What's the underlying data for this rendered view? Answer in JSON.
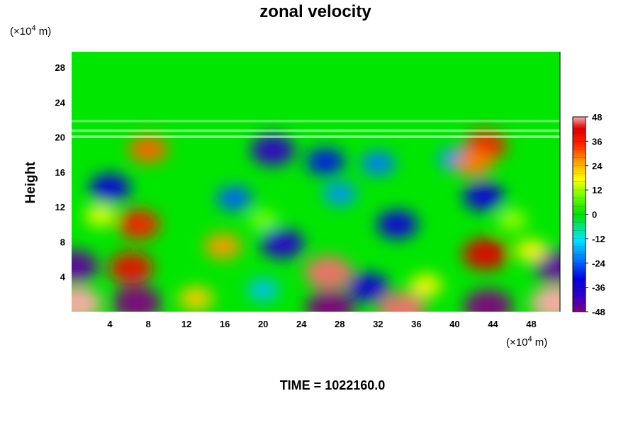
{
  "chart_data": {
    "type": "heatmap",
    "title": "zonal velocity",
    "xlabel": "",
    "ylabel": "Height",
    "x_unit_base": "(×10",
    "x_unit_exp": "4",
    "x_unit_tail": " m)",
    "y_unit_base": "(×10",
    "y_unit_exp": "4",
    "y_unit_tail": " m)",
    "xlim": [
      0,
      51
    ],
    "ylim": [
      0,
      29.8
    ],
    "x_ticks": [
      "4",
      "8",
      "12",
      "16",
      "20",
      "24",
      "28",
      "32",
      "36",
      "40",
      "44",
      "48"
    ],
    "y_ticks": [
      "4",
      "8",
      "12",
      "16",
      "20",
      "24",
      "28"
    ],
    "colorbar": {
      "ticks": [
        "48",
        "36",
        "24",
        "12",
        "0",
        "-12",
        "-24",
        "-36",
        "-48"
      ],
      "range": [
        -48,
        48
      ]
    },
    "features": [
      {
        "x": 0.5,
        "y": 0.9,
        "value": 50
      },
      {
        "x": 6.8,
        "y": 1.0,
        "value": -48
      },
      {
        "x": 27.0,
        "y": 0.5,
        "value": -48
      },
      {
        "x": 34.5,
        "y": 0.3,
        "value": 46
      },
      {
        "x": 43.5,
        "y": 0.6,
        "value": -48
      },
      {
        "x": 50.5,
        "y": 1.0,
        "value": 50
      },
      {
        "x": 0.3,
        "y": 5.2,
        "value": -45
      },
      {
        "x": 50.7,
        "y": 5.2,
        "value": -45
      },
      {
        "x": 6.2,
        "y": 5.0,
        "value": 40
      },
      {
        "x": 26.8,
        "y": 4.5,
        "value": 46
      },
      {
        "x": 43.2,
        "y": 6.6,
        "value": 42
      },
      {
        "x": 7.0,
        "y": 10.0,
        "value": 36
      },
      {
        "x": 15.8,
        "y": 7.5,
        "value": 26
      },
      {
        "x": 22.0,
        "y": 7.8,
        "value": -38
      },
      {
        "x": 31.0,
        "y": 2.8,
        "value": -34
      },
      {
        "x": 13.0,
        "y": 1.5,
        "value": 22
      },
      {
        "x": 20.0,
        "y": 2.5,
        "value": -16
      },
      {
        "x": 37.0,
        "y": 3.0,
        "value": 18
      },
      {
        "x": 34.0,
        "y": 10.0,
        "value": -34
      },
      {
        "x": 48.0,
        "y": 7.0,
        "value": 18
      },
      {
        "x": 4.0,
        "y": 14.2,
        "value": -34
      },
      {
        "x": 17.0,
        "y": 13.0,
        "value": -24
      },
      {
        "x": 28.0,
        "y": 13.5,
        "value": -20
      },
      {
        "x": 43.0,
        "y": 13.2,
        "value": -34
      },
      {
        "x": 21.0,
        "y": 18.5,
        "value": -40
      },
      {
        "x": 26.5,
        "y": 17.2,
        "value": -30
      },
      {
        "x": 32.0,
        "y": 17.0,
        "value": -22
      },
      {
        "x": 40.0,
        "y": 17.5,
        "value": -20
      },
      {
        "x": 8.0,
        "y": 18.6,
        "value": 30
      },
      {
        "x": 43.2,
        "y": 19.0,
        "value": 36
      },
      {
        "x": 42.0,
        "y": 17.0,
        "value": 28
      },
      {
        "x": 3.0,
        "y": 11.0,
        "value": 16
      },
      {
        "x": 20.0,
        "y": 10.5,
        "value": 10
      },
      {
        "x": 46.0,
        "y": 10.5,
        "value": 12
      }
    ]
  },
  "footer": {
    "time_label": "TIME = 1022160.0"
  }
}
